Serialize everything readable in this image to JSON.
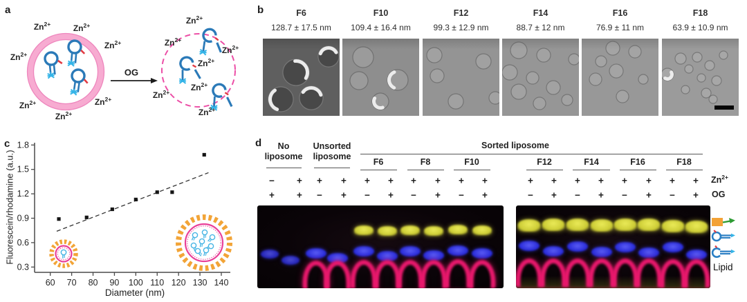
{
  "figure_labels": {
    "a": "a",
    "b": "b",
    "c": "c",
    "d": "d"
  },
  "panel_a": {
    "zn": {
      "base": "Zn",
      "sup": "2+"
    },
    "og": "OG"
  },
  "panel_b": {
    "fractions": [
      {
        "name": "F6",
        "size": "128.7 ± 17.5 nm"
      },
      {
        "name": "F10",
        "size": "109.4 ± 16.4 nm"
      },
      {
        "name": "F12",
        "size": "99.3 ± 12.9 nm"
      },
      {
        "name": "F14",
        "size": "88.7 ± 12 nm"
      },
      {
        "name": "F16",
        "size": "76.9 ± 11 nm"
      },
      {
        "name": "F18",
        "size": "63.9 ± 10.9 nm"
      }
    ]
  },
  "chart_data": {
    "type": "scatter",
    "xlabel": "Diameter (nm)",
    "ylabel": "Fluorescein/rhodamine (a.u.)",
    "x": [
      64,
      77,
      89,
      100,
      110,
      117,
      132
    ],
    "y": [
      0.89,
      0.91,
      1.01,
      1.13,
      1.22,
      1.22,
      1.68
    ],
    "xticks": [
      60,
      70,
      80,
      90,
      100,
      110,
      120,
      130,
      140
    ],
    "yticks": [
      0.3,
      0.6,
      0.9,
      1.2,
      1.5,
      1.8
    ],
    "xlim": [
      54,
      146
    ],
    "ylim": [
      0.3,
      1.8
    ],
    "grid": false,
    "legend_position": "none",
    "marker": "square",
    "marker_color": "#161616",
    "trend_line": {
      "x1": 63,
      "y1": 0.74,
      "x2": 134,
      "y2": 1.46,
      "style": "dashed"
    }
  },
  "panel_d": {
    "sorted_label": "Sorted liposome",
    "row_labels": {
      "zn_base": "Zn",
      "zn_sup": "2+",
      "og": "OG"
    },
    "groups": [
      {
        "name": "No liposome",
        "line1": "No",
        "line2": "liposome",
        "zn": [
          "−",
          "+"
        ],
        "og": [
          "+",
          "+"
        ]
      },
      {
        "name": "Unsorted liposome",
        "line1": "Unsorted",
        "line2": "liposome",
        "zn": [
          "+",
          "+"
        ],
        "og": [
          "−",
          "+"
        ]
      },
      {
        "name": "F6",
        "zn": [
          "+",
          "+"
        ],
        "og": [
          "−",
          "+"
        ]
      },
      {
        "name": "F8",
        "zn": [
          "+",
          "+"
        ],
        "og": [
          "−",
          "+"
        ]
      },
      {
        "name": "F10",
        "zn": [
          "+",
          "+"
        ],
        "og": [
          "−",
          "+"
        ]
      },
      {
        "name": "F12",
        "zn": [
          "+",
          "+"
        ],
        "og": [
          "−",
          "+"
        ]
      },
      {
        "name": "F14",
        "zn": [
          "+",
          "+"
        ],
        "og": [
          "−",
          "+"
        ]
      },
      {
        "name": "F16",
        "zn": [
          "+",
          "+"
        ],
        "og": [
          "−",
          "+"
        ]
      },
      {
        "name": "F18",
        "zn": [
          "+",
          "+"
        ],
        "og": [
          "−",
          "+"
        ]
      }
    ],
    "gels": [
      {
        "name": "left-gel",
        "lanes": [
          {
            "bands": {
              "blue": 362
            }
          },
          {
            "bands": {
              "blue": 371
            }
          },
          {
            "bands": {
              "blue": 360,
              "pink": 378
            }
          },
          {
            "bands": {
              "blue": 367,
              "pink": 378
            }
          },
          {
            "bands": {
              "yellow": 327,
              "blue": 357,
              "pink": 377
            }
          },
          {
            "bands": {
              "yellow": 328,
              "blue": 364,
              "pink": 377
            }
          },
          {
            "bands": {
              "yellow": 327,
              "blue": 357,
              "pink": 377
            }
          },
          {
            "bands": {
              "yellow": 328,
              "blue": 363,
              "pink": 377
            }
          },
          {
            "bands": {
              "yellow": 326,
              "blue": 356,
              "pink": 376
            }
          },
          {
            "bands": {
              "yellow": 327,
              "blue": 360,
              "pink": 377
            }
          }
        ]
      },
      {
        "name": "right-gel",
        "lanes": [
          {
            "bands": {
              "yellow": 318,
              "blue": 349,
              "pink": 375
            }
          },
          {
            "bands": {
              "yellow": 317,
              "blue": 357,
              "pink": 375
            }
          },
          {
            "bands": {
              "yellow": 317,
              "blue": 350,
              "pink": 375
            }
          },
          {
            "bands": {
              "yellow": 318,
              "blue": 358,
              "pink": 375
            }
          },
          {
            "bands": {
              "yellow": 317,
              "blue": 351,
              "pink": 375
            }
          },
          {
            "bands": {
              "yellow": 317,
              "blue": 359,
              "pink": 375
            }
          },
          {
            "bands": {
              "yellow": 319,
              "blue": 351,
              "pink": 376
            }
          },
          {
            "bands": {
              "yellow": 320,
              "blue": 362,
              "pink": 376
            }
          }
        ]
      }
    ],
    "legend": {
      "icons": [
        "dna-probe-icon",
        "closed-beacon-icon",
        "open-beacon-icon"
      ],
      "lipid": "Lipid"
    }
  }
}
